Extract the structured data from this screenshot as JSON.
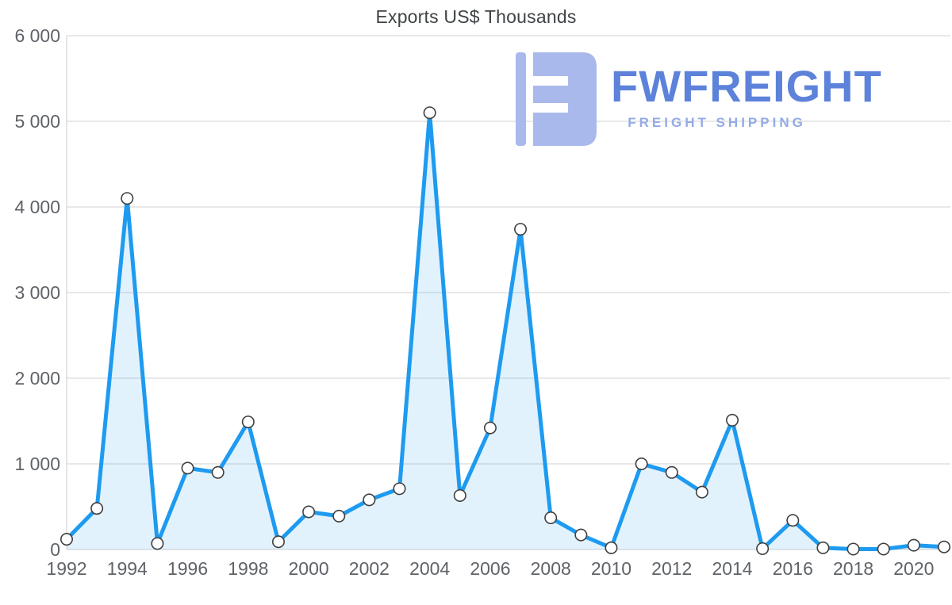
{
  "chart_data": {
    "type": "line",
    "title": "Exports US$ Thousands",
    "x": [
      1992,
      1993,
      1994,
      1995,
      1996,
      1997,
      1998,
      1999,
      2000,
      2001,
      2002,
      2003,
      2004,
      2005,
      2006,
      2007,
      2008,
      2009,
      2010,
      2011,
      2012,
      2013,
      2014,
      2015,
      2016,
      2017,
      2018,
      2019,
      2020,
      2021
    ],
    "values": [
      120,
      480,
      4100,
      70,
      950,
      900,
      1490,
      90,
      440,
      390,
      580,
      710,
      5100,
      630,
      1420,
      3740,
      370,
      170,
      20,
      1000,
      900,
      670,
      1510,
      10,
      340,
      20,
      5,
      5,
      50,
      30
    ],
    "xlabel": "",
    "ylabel": "",
    "ylim": [
      0,
      6000
    ],
    "y_ticks": [
      0,
      1000,
      2000,
      3000,
      4000,
      5000,
      6000
    ],
    "y_tick_labels": [
      "0",
      "1 000",
      "2 000",
      "3 000",
      "4 000",
      "5 000",
      "6 000"
    ],
    "x_tick_years": [
      1992,
      1994,
      1996,
      1998,
      2000,
      2002,
      2004,
      2006,
      2008,
      2010,
      2012,
      2014,
      2016,
      2018,
      2020
    ],
    "x_tick_labels": [
      "1992",
      "1994",
      "1996",
      "1998",
      "2000",
      "2002",
      "2004",
      "2006",
      "2008",
      "2010",
      "2012",
      "2014",
      "2016",
      "2018",
      "2020"
    ],
    "grid": "horizontal",
    "legend": "none",
    "colors": {
      "line": "#1e9bf0",
      "area_fill": "rgba(30,155,240,0.13)",
      "marker_fill": "#ffffff",
      "marker_stroke": "#3f3f3f",
      "gridline": "#d9d9d9",
      "axis_text": "#5f6368",
      "title_text": "#3f4345"
    }
  },
  "watermark": {
    "brand": "FWFREIGHT",
    "tagline": "FREIGHT SHIPPING",
    "icon": "fwfreight-logo-icon",
    "colors": {
      "icon": "#aab9ec",
      "brand_text": "#5d82da",
      "tagline_text": "#93abe6"
    }
  }
}
